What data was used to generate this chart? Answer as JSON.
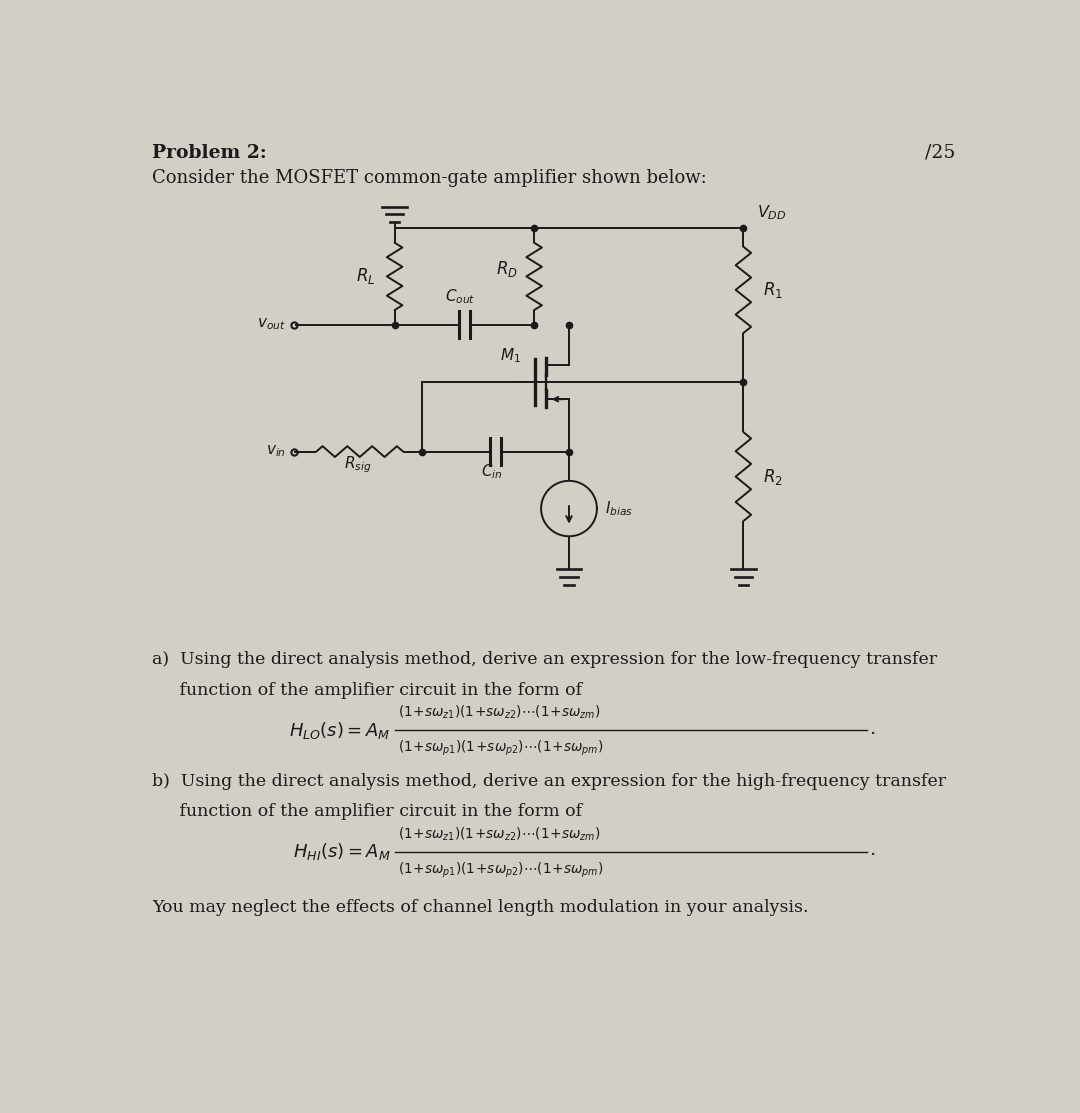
{
  "bg_color": "#d3cfc7",
  "line_color": "#1a1a1a",
  "title_left": "Problem 2:",
  "title_right": "/25",
  "subtitle": "Consider the MOSFET common-gate amplifier shown below:",
  "part_a_text1": "a)  Using the direct analysis method, derive an expression for the low-frequency transfer",
  "part_a_text2": "     function of the amplifier circuit in the form of",
  "part_b_text1": "b)  Using the direct analysis method, derive an expression for the high-frequency transfer",
  "part_b_text2": "     function of the amplifier circuit in the form of",
  "final_text": "You may neglect the effects of channel length modulation in your analysis."
}
